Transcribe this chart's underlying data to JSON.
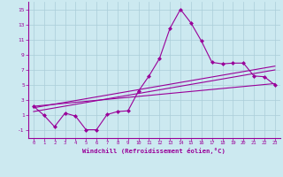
{
  "x": [
    0,
    1,
    2,
    3,
    4,
    5,
    6,
    7,
    8,
    9,
    10,
    11,
    12,
    13,
    14,
    15,
    16,
    17,
    18,
    19,
    20,
    21,
    22,
    23
  ],
  "main_line": [
    2.2,
    1.0,
    -0.5,
    1.3,
    0.9,
    -0.9,
    -0.9,
    1.1,
    1.5,
    1.6,
    4.2,
    6.2,
    8.5,
    12.5,
    15.0,
    13.2,
    10.8,
    8.0,
    7.8,
    7.9,
    7.9,
    6.2,
    6.1,
    5.0
  ],
  "reg_lines": [
    [
      [
        0,
        23
      ],
      [
        1.5,
        7.0
      ]
    ],
    [
      [
        0,
        23
      ],
      [
        2.0,
        7.5
      ]
    ],
    [
      [
        0,
        23
      ],
      [
        2.2,
        5.2
      ]
    ]
  ],
  "bg_color": "#cce9f0",
  "line_color": "#990099",
  "grid_color": "#aacdd8",
  "xlabel": "Windchill (Refroidissement éolien,°C)",
  "ylim": [
    -2,
    16
  ],
  "xlim": [
    -0.5,
    23.5
  ],
  "yticks": [
    -1,
    1,
    3,
    5,
    7,
    9,
    11,
    13,
    15
  ],
  "xticks": [
    0,
    1,
    2,
    3,
    4,
    5,
    6,
    7,
    8,
    9,
    10,
    11,
    12,
    13,
    14,
    15,
    16,
    17,
    18,
    19,
    20,
    21,
    22,
    23
  ],
  "marker_size": 2.5,
  "lw": 0.8
}
